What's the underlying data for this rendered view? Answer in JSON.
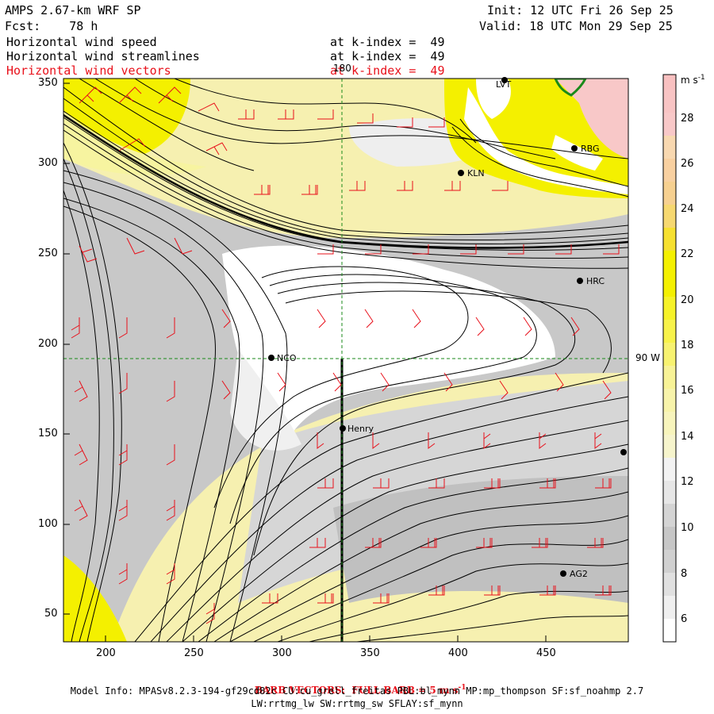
{
  "header": {
    "title": "AMPS 2.67-km WRF SP",
    "fcst": "Fcst:    78 h",
    "init": "Init: 12 UTC Fri 26 Sep 25",
    "valid": "Valid: 18 UTC Mon 29 Sep 25",
    "fields": [
      {
        "name": "Horizontal wind speed",
        "level": "at k-index =  49",
        "color": "#000000"
      },
      {
        "name": "Horizontal wind streamlines",
        "level": "at k-index =  49",
        "color": "#000000"
      },
      {
        "name": "Horizontal wind vectors",
        "level": "at k-index =  49",
        "color": "#e8101a"
      }
    ]
  },
  "map": {
    "x_ticks": [
      "200",
      "250",
      "300",
      "350",
      "400",
      "450"
    ],
    "y_ticks": [
      "50",
      "100",
      "150",
      "200",
      "250",
      "300",
      "350"
    ],
    "grid_labels": {
      "meridian": "180",
      "parallel": "90 W"
    },
    "stations": [
      "NCO",
      "Henry",
      "KLN",
      "RBG",
      "HRC",
      "AG2",
      "LVT"
    ],
    "colors": {
      "white": "#ffffff",
      "gray": "#c8c8c8",
      "light_yellow": "#f6f0b0",
      "yellow": "#f4f000",
      "pink": "#f8c8c8",
      "barbs": "#e8101a",
      "grid": "#1a8a1a"
    }
  },
  "colorbar": {
    "units": "m s",
    "units_exp": "-1",
    "labels": [
      "6",
      "8",
      "10",
      "12",
      "14",
      "16",
      "18",
      "20",
      "22",
      "24",
      "26",
      "28"
    ]
  },
  "footer": {
    "barb_note": "BARB VECTORS:  FULL BARB = 5 m s",
    "barb_exp": "-1",
    "model_info": "Model Info: MPASv8.2.3-194-gf29cd82c CU:cu_grell_freitas PBL:bl_mynn MP:mp_thompson SF:sf_noahmp 2.7",
    "physics": "LW:rrtmg_lw SW:rrtmg_sw SFLAY:sf_mynn"
  }
}
